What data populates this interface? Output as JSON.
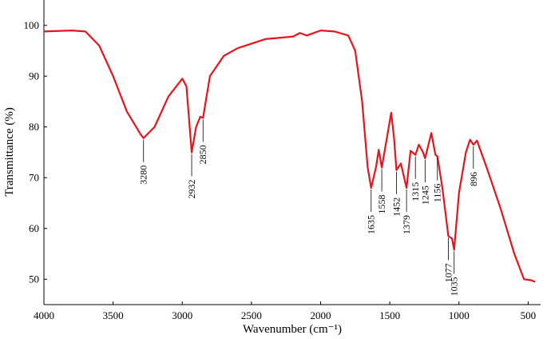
{
  "chart_data": {
    "type": "line",
    "xlabel": "Wavenumber (cm⁻¹)",
    "ylabel": "Transmittance (%)",
    "x": [
      4000,
      3800,
      3700,
      3600,
      3500,
      3400,
      3300,
      3280,
      3200,
      3100,
      3000,
      2970,
      2932,
      2900,
      2870,
      2850,
      2800,
      2700,
      2600,
      2400,
      2200,
      2150,
      2100,
      2000,
      1900,
      1800,
      1750,
      1700,
      1660,
      1635,
      1600,
      1580,
      1558,
      1520,
      1490,
      1470,
      1452,
      1420,
      1379,
      1350,
      1315,
      1290,
      1260,
      1245,
      1200,
      1170,
      1156,
      1120,
      1077,
      1050,
      1035,
      1000,
      950,
      920,
      896,
      870,
      800,
      700,
      600,
      530,
      480,
      450
    ],
    "series": [
      {
        "color": "#e8141b",
        "values": [
          98.8,
          99.0,
          98.8,
          96,
          90,
          83,
          78.5,
          77.8,
          80,
          86,
          89.5,
          88,
          75,
          80,
          82,
          81.8,
          90,
          94,
          95.5,
          97.3,
          97.8,
          98.5,
          98,
          99,
          98.8,
          98,
          95,
          85,
          72,
          68,
          72,
          75.5,
          72,
          78,
          82.8,
          78,
          71.5,
          72.8,
          68,
          75.3,
          74.5,
          76.5,
          75,
          73.8,
          78.8,
          74.5,
          74.2,
          68,
          58.5,
          58,
          55.8,
          67,
          75,
          77.5,
          76.5,
          77.3,
          72,
          64,
          55,
          50,
          49.8,
          49.5
        ]
      }
    ],
    "peaks": [
      3280,
      2932,
      2850,
      1635,
      1558,
      1452,
      1379,
      1315,
      1245,
      1156,
      1077,
      1035,
      896
    ],
    "xlim": [
      4000,
      410
    ],
    "ylim": [
      45,
      105
    ],
    "xticks": [
      4000,
      3500,
      3000,
      2500,
      2000,
      1500,
      1000,
      500
    ],
    "yticks": [
      50,
      60,
      70,
      80,
      90,
      100
    ]
  }
}
